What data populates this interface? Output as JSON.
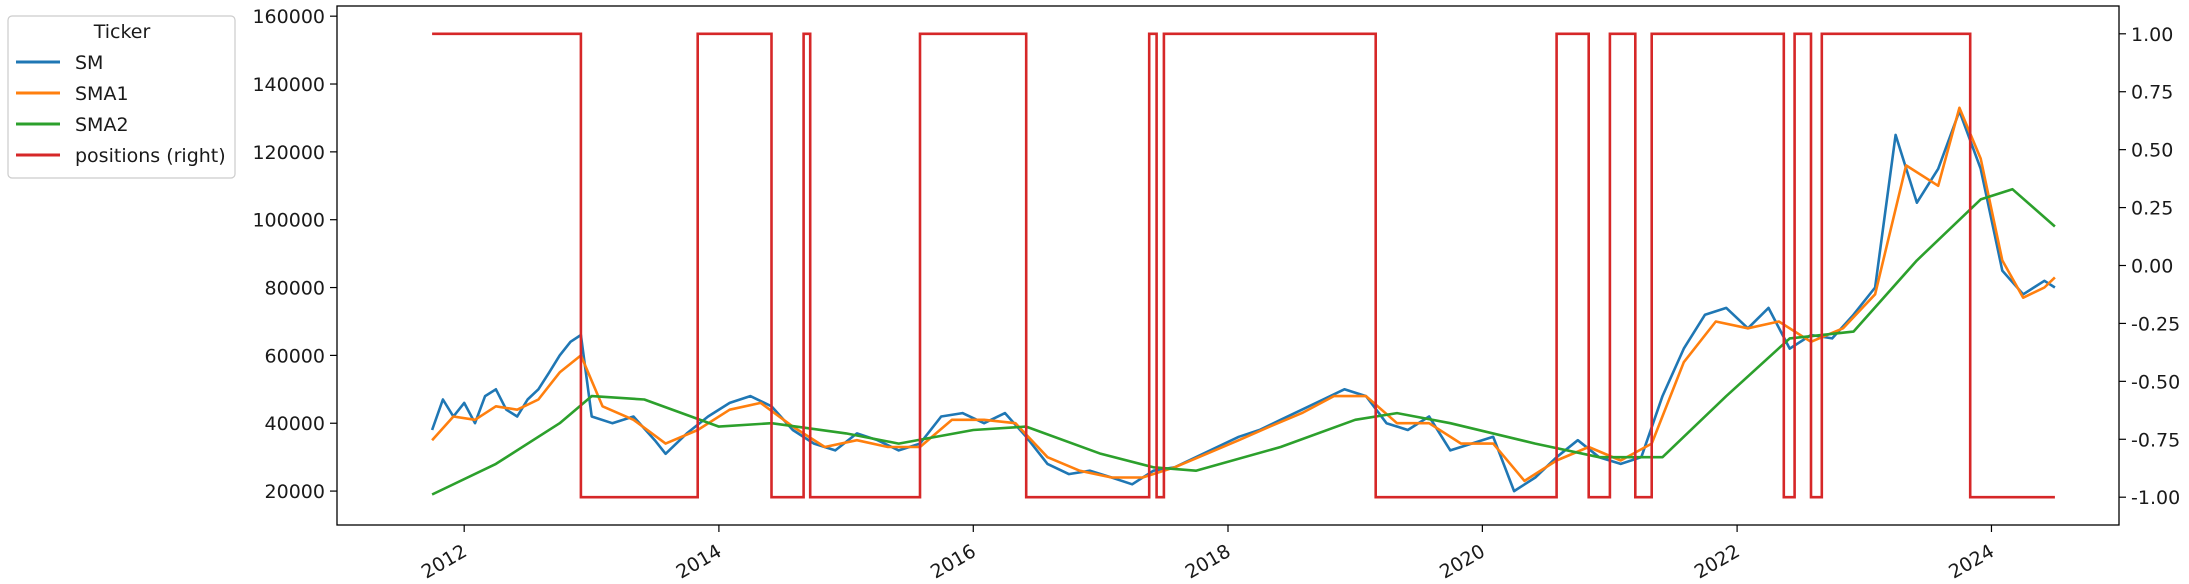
{
  "chart_data": {
    "type": "line",
    "title": "",
    "xlabel": "",
    "ylabel": "",
    "legend": {
      "title": "Ticker",
      "placement": "outside-top-left",
      "entries": [
        "SM",
        "SMA1",
        "SMA2",
        "positions (right)"
      ]
    },
    "x_ticks": [
      "2012",
      "2014",
      "2016",
      "2018",
      "2020",
      "2022",
      "2024"
    ],
    "y_ticks_left": [
      "20000",
      "40000",
      "60000",
      "80000",
      "100000",
      "120000",
      "140000",
      "160000"
    ],
    "y_ticks_right": [
      "-1.00",
      "-0.75",
      "-0.50",
      "-0.25",
      "0.00",
      "0.25",
      "0.50",
      "0.75",
      "1.00"
    ],
    "xlim": [
      "2011-01-01",
      "2025-01-01"
    ],
    "ylim_left": [
      10000,
      163000
    ],
    "ylim_right": [
      -1.12,
      1.12
    ],
    "grid": false,
    "colors": {
      "SM": "#1f77b4",
      "SMA1": "#ff7f0e",
      "SMA2": "#2ca02c",
      "positions": "#d62728"
    },
    "series": [
      {
        "name": "SM",
        "axis": "left",
        "points": [
          [
            "2011-10-01",
            38000
          ],
          [
            "2011-11-01",
            47000
          ],
          [
            "2011-12-01",
            42000
          ],
          [
            "2012-01-01",
            46000
          ],
          [
            "2012-02-01",
            40000
          ],
          [
            "2012-03-01",
            48000
          ],
          [
            "2012-04-01",
            50000
          ],
          [
            "2012-05-01",
            44000
          ],
          [
            "2012-06-01",
            42000
          ],
          [
            "2012-07-01",
            47000
          ],
          [
            "2012-08-01",
            50000
          ],
          [
            "2012-09-01",
            55000
          ],
          [
            "2012-10-01",
            60000
          ],
          [
            "2012-11-01",
            64000
          ],
          [
            "2012-12-01",
            66000
          ],
          [
            "2013-01-01",
            42000
          ],
          [
            "2013-03-01",
            40000
          ],
          [
            "2013-05-01",
            42000
          ],
          [
            "2013-07-01",
            35000
          ],
          [
            "2013-08-01",
            31000
          ],
          [
            "2013-10-01",
            37000
          ],
          [
            "2013-12-01",
            42000
          ],
          [
            "2014-02-01",
            46000
          ],
          [
            "2014-04-01",
            48000
          ],
          [
            "2014-06-01",
            45000
          ],
          [
            "2014-08-01",
            38000
          ],
          [
            "2014-10-01",
            34000
          ],
          [
            "2014-12-01",
            32000
          ],
          [
            "2015-02-01",
            37000
          ],
          [
            "2015-04-01",
            35000
          ],
          [
            "2015-06-01",
            32000
          ],
          [
            "2015-08-01",
            34000
          ],
          [
            "2015-10-01",
            42000
          ],
          [
            "2015-12-01",
            43000
          ],
          [
            "2016-02-01",
            40000
          ],
          [
            "2016-04-01",
            43000
          ],
          [
            "2016-06-01",
            36000
          ],
          [
            "2016-08-01",
            28000
          ],
          [
            "2016-10-01",
            25000
          ],
          [
            "2016-12-01",
            26000
          ],
          [
            "2017-02-01",
            24000
          ],
          [
            "2017-04-01",
            22000
          ],
          [
            "2017-06-01",
            26000
          ],
          [
            "2017-08-01",
            27000
          ],
          [
            "2017-10-01",
            30000
          ],
          [
            "2017-12-01",
            33000
          ],
          [
            "2018-02-01",
            36000
          ],
          [
            "2018-04-01",
            38000
          ],
          [
            "2018-06-01",
            41000
          ],
          [
            "2018-08-01",
            44000
          ],
          [
            "2018-10-01",
            47000
          ],
          [
            "2018-12-01",
            50000
          ],
          [
            "2019-02-01",
            48000
          ],
          [
            "2019-04-01",
            40000
          ],
          [
            "2019-06-01",
            38000
          ],
          [
            "2019-08-01",
            42000
          ],
          [
            "2019-10-01",
            32000
          ],
          [
            "2019-12-01",
            34000
          ],
          [
            "2020-02-01",
            36000
          ],
          [
            "2020-04-01",
            20000
          ],
          [
            "2020-06-01",
            24000
          ],
          [
            "2020-08-01",
            30000
          ],
          [
            "2020-10-01",
            35000
          ],
          [
            "2020-12-01",
            30000
          ],
          [
            "2021-02-01",
            28000
          ],
          [
            "2021-04-01",
            30000
          ],
          [
            "2021-06-01",
            48000
          ],
          [
            "2021-08-01",
            62000
          ],
          [
            "2021-10-01",
            72000
          ],
          [
            "2021-12-01",
            74000
          ],
          [
            "2022-02-01",
            68000
          ],
          [
            "2022-04-01",
            74000
          ],
          [
            "2022-06-01",
            62000
          ],
          [
            "2022-08-01",
            66000
          ],
          [
            "2022-10-01",
            65000
          ],
          [
            "2022-12-01",
            72000
          ],
          [
            "2023-02-01",
            80000
          ],
          [
            "2023-04-01",
            125000
          ],
          [
            "2023-06-01",
            105000
          ],
          [
            "2023-08-01",
            115000
          ],
          [
            "2023-10-01",
            132000
          ],
          [
            "2023-12-01",
            115000
          ],
          [
            "2024-02-01",
            85000
          ],
          [
            "2024-04-01",
            78000
          ],
          [
            "2024-06-01",
            82000
          ],
          [
            "2024-07-01",
            80000
          ]
        ]
      },
      {
        "name": "SMA1",
        "axis": "left",
        "points": [
          [
            "2011-10-01",
            35000
          ],
          [
            "2011-12-01",
            42000
          ],
          [
            "2012-02-01",
            41000
          ],
          [
            "2012-04-01",
            45000
          ],
          [
            "2012-06-01",
            44000
          ],
          [
            "2012-08-01",
            47000
          ],
          [
            "2012-10-01",
            55000
          ],
          [
            "2012-12-01",
            60000
          ],
          [
            "2013-02-01",
            45000
          ],
          [
            "2013-05-01",
            41000
          ],
          [
            "2013-08-01",
            34000
          ],
          [
            "2013-11-01",
            38000
          ],
          [
            "2014-02-01",
            44000
          ],
          [
            "2014-05-01",
            46000
          ],
          [
            "2014-08-01",
            39000
          ],
          [
            "2014-11-01",
            33000
          ],
          [
            "2015-02-01",
            35000
          ],
          [
            "2015-05-01",
            33000
          ],
          [
            "2015-08-01",
            33000
          ],
          [
            "2015-11-01",
            41000
          ],
          [
            "2016-02-01",
            41000
          ],
          [
            "2016-05-01",
            40000
          ],
          [
            "2016-08-01",
            30000
          ],
          [
            "2016-11-01",
            26000
          ],
          [
            "2017-02-01",
            24000
          ],
          [
            "2017-05-01",
            24000
          ],
          [
            "2017-08-01",
            27000
          ],
          [
            "2017-11-01",
            31000
          ],
          [
            "2018-02-01",
            35000
          ],
          [
            "2018-05-01",
            39000
          ],
          [
            "2018-08-01",
            43000
          ],
          [
            "2018-11-01",
            48000
          ],
          [
            "2019-02-01",
            48000
          ],
          [
            "2019-05-01",
            40000
          ],
          [
            "2019-08-01",
            40000
          ],
          [
            "2019-11-01",
            34000
          ],
          [
            "2020-02-01",
            34000
          ],
          [
            "2020-05-01",
            23000
          ],
          [
            "2020-08-01",
            29000
          ],
          [
            "2020-11-01",
            33000
          ],
          [
            "2021-02-01",
            29000
          ],
          [
            "2021-05-01",
            34000
          ],
          [
            "2021-08-01",
            58000
          ],
          [
            "2021-11-01",
            70000
          ],
          [
            "2022-02-01",
            68000
          ],
          [
            "2022-05-01",
            70000
          ],
          [
            "2022-08-01",
            64000
          ],
          [
            "2022-11-01",
            68000
          ],
          [
            "2023-02-01",
            78000
          ],
          [
            "2023-05-01",
            116000
          ],
          [
            "2023-08-01",
            110000
          ],
          [
            "2023-10-01",
            133000
          ],
          [
            "2023-12-01",
            118000
          ],
          [
            "2024-02-01",
            88000
          ],
          [
            "2024-04-01",
            77000
          ],
          [
            "2024-06-01",
            80000
          ],
          [
            "2024-07-01",
            83000
          ]
        ]
      },
      {
        "name": "SMA2",
        "axis": "left",
        "points": [
          [
            "2011-10-01",
            19000
          ],
          [
            "2012-04-01",
            28000
          ],
          [
            "2012-10-01",
            40000
          ],
          [
            "2013-01-01",
            48000
          ],
          [
            "2013-06-01",
            47000
          ],
          [
            "2014-01-01",
            39000
          ],
          [
            "2014-06-01",
            40000
          ],
          [
            "2015-01-01",
            37000
          ],
          [
            "2015-06-01",
            34000
          ],
          [
            "2016-01-01",
            38000
          ],
          [
            "2016-06-01",
            39000
          ],
          [
            "2017-01-01",
            31000
          ],
          [
            "2017-06-01",
            27000
          ],
          [
            "2017-10-01",
            26000
          ],
          [
            "2018-06-01",
            33000
          ],
          [
            "2019-01-01",
            41000
          ],
          [
            "2019-05-01",
            43000
          ],
          [
            "2019-10-01",
            40000
          ],
          [
            "2020-06-01",
            34000
          ],
          [
            "2020-12-01",
            30000
          ],
          [
            "2021-06-01",
            30000
          ],
          [
            "2021-12-01",
            48000
          ],
          [
            "2022-06-01",
            65000
          ],
          [
            "2022-12-01",
            67000
          ],
          [
            "2023-06-01",
            88000
          ],
          [
            "2023-12-01",
            106000
          ],
          [
            "2024-03-01",
            109000
          ],
          [
            "2024-07-01",
            98000
          ]
        ]
      }
    ],
    "positions": {
      "name": "positions (right)",
      "axis": "right",
      "values": [
        -1,
        1
      ],
      "intervals": [
        [
          "2011-10-01",
          "2012-12-01",
          1
        ],
        [
          "2012-12-01",
          "2013-11-01",
          -1
        ],
        [
          "2013-11-01",
          "2014-06-01",
          1
        ],
        [
          "2014-06-01",
          "2014-09-01",
          -1
        ],
        [
          "2014-09-01",
          "2014-09-20",
          1
        ],
        [
          "2014-09-20",
          "2015-08-01",
          -1
        ],
        [
          "2015-08-01",
          "2016-06-01",
          1
        ],
        [
          "2016-06-01",
          "2017-05-20",
          -1
        ],
        [
          "2017-05-20",
          "2017-06-10",
          1
        ],
        [
          "2017-06-10",
          "2017-07-01",
          -1
        ],
        [
          "2017-07-01",
          "2019-03-01",
          1
        ],
        [
          "2019-03-01",
          "2020-08-01",
          -1
        ],
        [
          "2020-08-01",
          "2020-11-01",
          1
        ],
        [
          "2020-11-01",
          "2021-01-01",
          -1
        ],
        [
          "2021-01-01",
          "2021-03-15",
          1
        ],
        [
          "2021-03-15",
          "2021-05-01",
          -1
        ],
        [
          "2021-05-01",
          "2022-05-15",
          1
        ],
        [
          "2022-05-15",
          "2022-06-15",
          -1
        ],
        [
          "2022-06-15",
          "2022-08-01",
          1
        ],
        [
          "2022-08-01",
          "2022-09-01",
          -1
        ],
        [
          "2022-09-01",
          "2022-12-01",
          1
        ],
        [
          "2022-12-01",
          "2023-11-01",
          1
        ],
        [
          "2023-11-01",
          "2024-07-01",
          -1
        ]
      ]
    }
  }
}
